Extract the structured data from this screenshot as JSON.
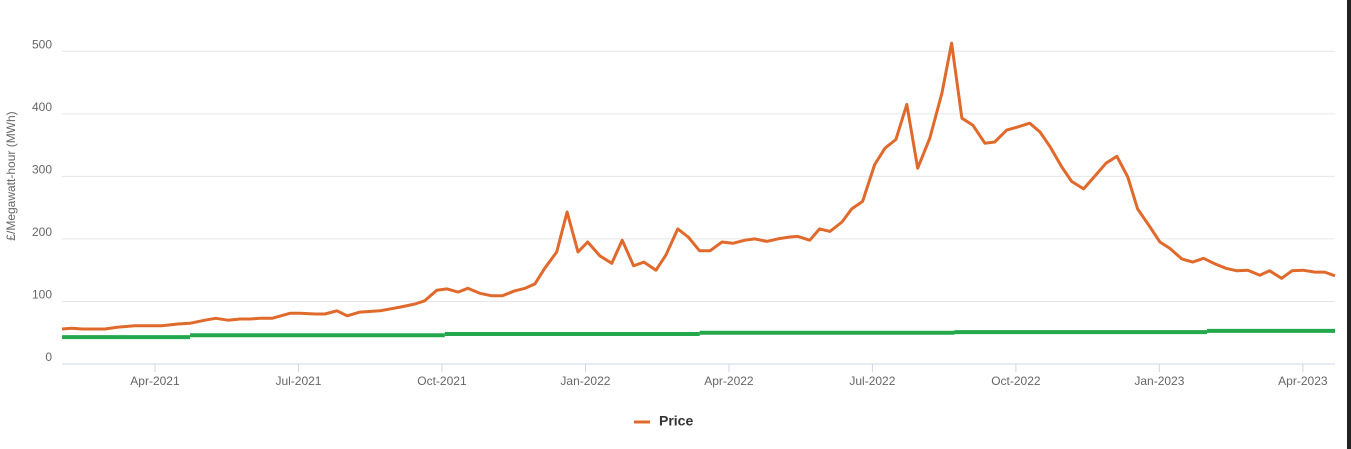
{
  "chart_data": {
    "type": "line",
    "y_label": "£/Megawatt-hour (MWh)",
    "xlim": [
      2021.088,
      2023.306
    ],
    "xticks": [
      {
        "value": 2021.25,
        "label": "Apr-2021"
      },
      {
        "value": 2021.5,
        "label": "Jul-2021"
      },
      {
        "value": 2021.75,
        "label": "Oct-2021"
      },
      {
        "value": 2022.0,
        "label": "Jan-2022"
      },
      {
        "value": 2022.25,
        "label": "Apr-2022"
      },
      {
        "value": 2022.5,
        "label": "Jul-2022"
      },
      {
        "value": 2022.75,
        "label": "Oct-2022"
      },
      {
        "value": 2023.0,
        "label": "Jan-2023"
      },
      {
        "value": 2023.25,
        "label": "Apr-2023"
      }
    ],
    "ylim": [
      0,
      550
    ],
    "yticks": [
      0,
      100,
      200,
      300,
      400,
      500
    ],
    "grid": true,
    "legend": "bottom",
    "x": [
      2021.088,
      2021.105,
      2021.123,
      2021.163,
      2021.186,
      2021.215,
      2021.241,
      2021.262,
      2021.29,
      2021.311,
      2021.337,
      2021.356,
      2021.377,
      2021.398,
      2021.416,
      2021.433,
      2021.454,
      2021.485,
      2021.503,
      2021.529,
      2021.546,
      2021.567,
      2021.585,
      2021.607,
      2021.642,
      2021.677,
      2021.703,
      2021.72,
      2021.741,
      2021.759,
      2021.778,
      2021.795,
      2021.816,
      2021.837,
      2021.855,
      2021.877,
      2021.895,
      2021.912,
      2021.929,
      2021.95,
      2021.968,
      2021.987,
      2022.004,
      2022.025,
      2022.046,
      2022.064,
      2022.084,
      2022.102,
      2022.123,
      2022.14,
      2022.161,
      2022.179,
      2022.199,
      2022.217,
      2022.238,
      2022.257,
      2022.278,
      2022.295,
      2022.316,
      2022.335,
      2022.356,
      2022.37,
      2022.391,
      2022.408,
      2022.426,
      2022.447,
      2022.464,
      2022.483,
      2022.504,
      2022.522,
      2022.541,
      2022.56,
      2022.579,
      2022.6,
      2022.621,
      2022.638,
      2022.656,
      2022.675,
      2022.696,
      2022.713,
      2022.734,
      2022.753,
      2022.774,
      2022.792,
      2022.809,
      2022.83,
      2022.847,
      2022.868,
      2022.889,
      2022.907,
      2022.926,
      2022.945,
      2022.962,
      2022.983,
      2023.001,
      2023.018,
      2023.039,
      2023.058,
      2023.077,
      2023.097,
      2023.116,
      2023.135,
      2023.154,
      2023.175,
      2023.192,
      2023.213,
      2023.231,
      2023.25,
      2023.271,
      2023.288,
      2023.306
    ],
    "series": [
      {
        "name": "Price",
        "color": "#e0692c",
        "values": [
          56,
          57,
          56,
          56,
          59,
          61,
          61,
          61,
          64,
          65,
          70,
          73,
          70,
          72,
          72,
          73,
          73,
          81,
          81,
          80,
          80,
          85,
          77,
          83,
          85,
          91,
          96,
          101,
          118,
          120,
          115,
          121,
          113,
          109,
          109,
          117,
          121,
          128,
          153,
          179,
          243,
          179,
          195,
          173,
          161,
          198,
          157,
          163,
          150,
          174,
          216,
          203,
          181,
          181,
          195,
          193,
          198,
          200,
          196,
          200,
          203,
          204,
          198,
          216,
          212,
          227,
          248,
          260,
          319,
          345,
          359,
          415,
          313,
          361,
          433,
          513,
          393,
          382,
          353,
          355,
          374,
          379,
          385,
          371,
          348,
          315,
          292,
          280,
          302,
          321,
          332,
          299,
          248,
          220,
          195,
          185,
          168,
          163,
          169,
          160,
          153,
          149,
          150,
          142,
          149,
          137,
          149,
          150,
          147,
          147,
          141
        ]
      },
      {
        "color": "#23a84b",
        "drawstyle": "steps-post",
        "x": [
          2021.088,
          2021.311,
          2021.755,
          2022.199,
          2022.643,
          2023.083
        ],
        "values": [
          43,
          46,
          48,
          50,
          51,
          53
        ]
      }
    ]
  }
}
